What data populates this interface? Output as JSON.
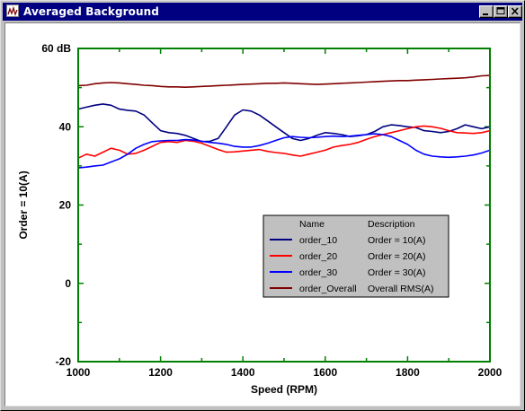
{
  "window": {
    "title": "Averaged Background",
    "icon": "waveform-icon",
    "controls": [
      "minimize-icon",
      "maximize-icon",
      "close-icon"
    ]
  },
  "chart_data": {
    "type": "line",
    "title": "",
    "xlabel": "Speed (RPM)",
    "ylabel": "Order = 10(A)",
    "xlim": [
      1000,
      2000
    ],
    "ylim": [
      -20,
      60
    ],
    "x_ticks": [
      "1000",
      "1200",
      "1400",
      "1600",
      "1800",
      "2000"
    ],
    "y_ticks": [
      "60 dB",
      "40",
      "20",
      "0",
      "-20"
    ],
    "grid": false,
    "frame_color": "#008000",
    "legend": {
      "placement": "center-right",
      "header": {
        "name": "Name",
        "description": "Description"
      },
      "background": "#c0c0c0"
    },
    "series": [
      {
        "name": "order_10",
        "description": "Order = 10(A)",
        "color": "#000080",
        "x": [
          1000,
          1020,
          1040,
          1060,
          1080,
          1100,
          1120,
          1140,
          1160,
          1180,
          1200,
          1220,
          1240,
          1260,
          1280,
          1300,
          1320,
          1340,
          1360,
          1380,
          1400,
          1420,
          1440,
          1460,
          1480,
          1500,
          1520,
          1540,
          1560,
          1580,
          1600,
          1620,
          1640,
          1660,
          1680,
          1700,
          1720,
          1740,
          1760,
          1780,
          1800,
          1820,
          1840,
          1860,
          1880,
          1900,
          1920,
          1940,
          1960,
          1980,
          2000
        ],
        "y": [
          44.5,
          45,
          45.5,
          45.8,
          45.5,
          44.5,
          44.2,
          44,
          43,
          41,
          39,
          38.5,
          38.3,
          37.8,
          37,
          36.2,
          36.3,
          37,
          40,
          43,
          44.3,
          44,
          43,
          41.5,
          40,
          38.5,
          37,
          36.5,
          37,
          37.8,
          38.5,
          38.3,
          38,
          37.5,
          37.7,
          38,
          38.8,
          40,
          40.5,
          40.3,
          40,
          39.8,
          39,
          38.8,
          38.5,
          38.8,
          39.5,
          40.5,
          40,
          39.5,
          40
        ]
      },
      {
        "name": "order_20",
        "description": "Order = 20(A)",
        "color": "#ff0000",
        "x": [
          1000,
          1020,
          1040,
          1060,
          1080,
          1100,
          1120,
          1140,
          1160,
          1180,
          1200,
          1220,
          1240,
          1260,
          1280,
          1300,
          1320,
          1340,
          1360,
          1380,
          1400,
          1420,
          1440,
          1460,
          1480,
          1500,
          1520,
          1540,
          1560,
          1580,
          1600,
          1620,
          1640,
          1660,
          1680,
          1700,
          1720,
          1740,
          1760,
          1780,
          1800,
          1820,
          1840,
          1860,
          1880,
          1900,
          1920,
          1940,
          1960,
          1980,
          2000
        ],
        "y": [
          32,
          33,
          32.5,
          33.5,
          34.5,
          34,
          33,
          33.2,
          34,
          35,
          36,
          36.2,
          36,
          36.5,
          36.3,
          35.8,
          35,
          34.2,
          33.5,
          33.6,
          33.8,
          34,
          34.2,
          33.7,
          33.4,
          33.2,
          32.8,
          32.5,
          33,
          33.5,
          34,
          34.8,
          35.2,
          35.5,
          36,
          36.8,
          37.5,
          38,
          38.5,
          39,
          39.5,
          40,
          40.2,
          40,
          39.6,
          39,
          38.5,
          38.4,
          38.3,
          38.5,
          39
        ]
      },
      {
        "name": "order_30",
        "description": "Order = 30(A)",
        "color": "#0000ff",
        "x": [
          1000,
          1020,
          1040,
          1060,
          1080,
          1100,
          1120,
          1140,
          1160,
          1180,
          1200,
          1220,
          1240,
          1260,
          1280,
          1300,
          1320,
          1340,
          1360,
          1380,
          1400,
          1420,
          1440,
          1460,
          1480,
          1500,
          1520,
          1540,
          1560,
          1580,
          1600,
          1620,
          1640,
          1660,
          1680,
          1700,
          1720,
          1740,
          1760,
          1780,
          1800,
          1820,
          1840,
          1860,
          1880,
          1900,
          1920,
          1940,
          1960,
          1980,
          2000
        ],
        "y": [
          29.5,
          29.7,
          30,
          30.2,
          31,
          31.8,
          33,
          34.5,
          35.5,
          36.2,
          36.4,
          36.5,
          36.5,
          36.7,
          36.6,
          36.3,
          36,
          35.8,
          35.5,
          35,
          34.8,
          34.8,
          35.2,
          35.8,
          36.5,
          37.2,
          37.5,
          37.3,
          37.2,
          37.3,
          37.5,
          37.6,
          37.5,
          37.6,
          37.8,
          38,
          38.2,
          38,
          37.5,
          36.5,
          35.5,
          34,
          33,
          32.5,
          32.3,
          32.2,
          32.3,
          32.5,
          32.8,
          33.3,
          34
        ]
      },
      {
        "name": "order_Overall",
        "description": "Overall RMS(A)",
        "color": "#800000",
        "x": [
          1000,
          1020,
          1040,
          1060,
          1080,
          1100,
          1120,
          1140,
          1160,
          1180,
          1200,
          1220,
          1240,
          1260,
          1280,
          1300,
          1320,
          1340,
          1360,
          1380,
          1400,
          1420,
          1440,
          1460,
          1480,
          1500,
          1520,
          1540,
          1560,
          1580,
          1600,
          1620,
          1640,
          1660,
          1680,
          1700,
          1720,
          1740,
          1760,
          1780,
          1800,
          1820,
          1840,
          1860,
          1880,
          1900,
          1920,
          1940,
          1960,
          1980,
          2000
        ],
        "y": [
          50.5,
          50.6,
          51,
          51.2,
          51.3,
          51.2,
          51,
          50.8,
          50.6,
          50.5,
          50.3,
          50.2,
          50.2,
          50.1,
          50.2,
          50.3,
          50.4,
          50.5,
          50.6,
          50.7,
          50.8,
          50.9,
          51,
          51.1,
          51.1,
          51.2,
          51.1,
          51,
          50.9,
          50.8,
          50.9,
          51,
          51.1,
          51.2,
          51.3,
          51.4,
          51.5,
          51.6,
          51.7,
          51.8,
          51.8,
          51.9,
          52,
          52.1,
          52.2,
          52.3,
          52.4,
          52.5,
          52.7,
          53,
          53.1
        ]
      }
    ]
  }
}
